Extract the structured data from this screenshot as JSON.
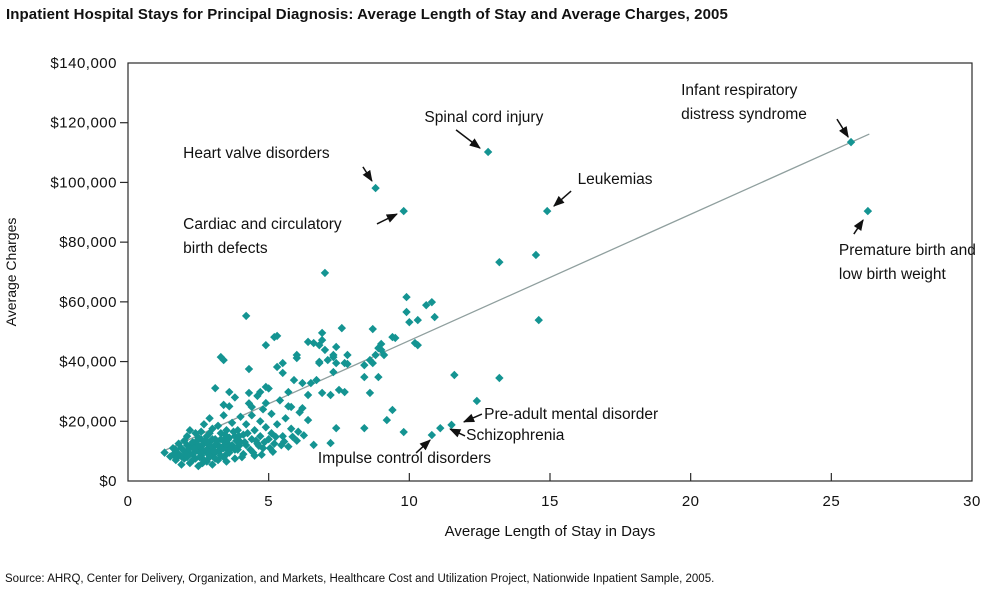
{
  "page": {
    "title": "Inpatient Hospital Stays for Principal Diagnosis: Average Length of Stay and Average Charges, 2005",
    "source": "Source:  AHRQ, Center for Delivery, Organization, and Markets, Healthcare Cost and Utilization Project, Nationwide Inpatient Sample, 2005."
  },
  "chart_data": {
    "type": "scatter",
    "title": "Inpatient Hospital Stays for Principal Diagnosis: Average Length of Stay and Average Charges, 2005",
    "xlabel": "Average Length of Stay in Days",
    "ylabel": "Average Charges",
    "xlim": [
      0,
      30
    ],
    "ylim": [
      0,
      140000
    ],
    "x_ticks": [
      0,
      5,
      10,
      15,
      20,
      25,
      30
    ],
    "y_ticks": [
      0,
      20000,
      40000,
      60000,
      80000,
      100000,
      120000,
      140000
    ],
    "y_tick_labels": [
      "$0",
      "$20,000",
      "$40,000",
      "$60,000",
      "$80,000",
      "$100,000",
      "$120,000",
      "$140,000"
    ],
    "grid": "off",
    "legend": "none",
    "marker": "diamond",
    "marker_color": "#149492",
    "trendline": {
      "x": [
        1.2,
        26.35
      ],
      "y": [
        9800,
        116200
      ],
      "color": "#8f9f9e"
    },
    "annotations": [
      {
        "lines": [
          "Spinal cord injury"
        ],
        "anchor": "middle",
        "label_xy": [
          12.65,
          120200
        ],
        "arrow": {
          "from": [
            11.66,
            117600
          ],
          "to": [
            12.51,
            111500
          ]
        },
        "point": [
          12.8,
          110200
        ]
      },
      {
        "lines": [
          "Infant respiratory",
          "distress syndrome"
        ],
        "anchor": "start",
        "label_xy": [
          19.66,
          129300
        ],
        "arrow": {
          "from": [
            25.2,
            121200
          ],
          "to": [
            25.6,
            115200
          ]
        },
        "point": [
          25.7,
          113500
        ]
      },
      {
        "lines": [
          "Heart valve disorders"
        ],
        "anchor": "start",
        "label_xy": [
          1.96,
          108200
        ],
        "arrow": {
          "from": [
            8.35,
            105200
          ],
          "to": [
            8.67,
            100500
          ]
        },
        "point": [
          8.8,
          98100
        ]
      },
      {
        "lines": [
          "Cardiac and circulatory",
          "birth defects"
        ],
        "anchor": "start",
        "label_xy": [
          1.96,
          84400
        ],
        "arrow": {
          "from": [
            8.85,
            86100
          ],
          "to": [
            9.56,
            89400
          ]
        },
        "point": [
          9.85,
          90400
        ]
      },
      {
        "lines": [
          "Leukemias"
        ],
        "anchor": "start",
        "label_xy": [
          15.98,
          99500
        ],
        "arrow": {
          "from": [
            15.75,
            97100
          ],
          "to": [
            15.14,
            92100
          ]
        },
        "point": [
          14.9,
          90400
        ]
      },
      {
        "lines": [
          "Premature birth and",
          "low birth weight"
        ],
        "anchor": "start",
        "label_xy": [
          25.27,
          75700
        ],
        "arrow": {
          "from": [
            25.8,
            82700
          ],
          "to": [
            26.13,
            87400
          ]
        },
        "point": [
          26.3,
          90400
        ]
      },
      {
        "lines": [
          "Pre-adult mental disorder"
        ],
        "anchor": "start",
        "label_xy": [
          12.66,
          20800
        ],
        "arrow": {
          "from": [
            12.58,
            22400
          ],
          "to": [
            11.94,
            19800
          ]
        },
        "point": [
          11.5,
          18800
        ]
      },
      {
        "lines": [
          "Schizophrenia"
        ],
        "anchor": "start",
        "label_xy": [
          12.02,
          13700
        ],
        "arrow": {
          "from": [
            11.98,
            15100
          ],
          "to": [
            11.45,
            17400
          ]
        },
        "point": [
          11.1,
          17700
        ]
      },
      {
        "lines": [
          "Impulse control disorders"
        ],
        "anchor": "start",
        "label_xy": [
          6.75,
          6000
        ],
        "arrow": {
          "from": [
            10.24,
            9400
          ],
          "to": [
            10.74,
            13700
          ]
        },
        "point": [
          10.8,
          15400
        ]
      }
    ],
    "points": [
      [
        8.8,
        98100
      ],
      [
        9.8,
        90400
      ],
      [
        12.8,
        110200
      ],
      [
        14.9,
        90400
      ],
      [
        25.7,
        113500
      ],
      [
        26.3,
        90400
      ],
      [
        11.5,
        18800
      ],
      [
        11.1,
        17700
      ],
      [
        10.8,
        15400
      ],
      [
        7.0,
        69700
      ],
      [
        13.2,
        73300
      ],
      [
        14.5,
        75700
      ],
      [
        14.6,
        53900
      ],
      [
        4.2,
        55300
      ],
      [
        13.2,
        34500
      ],
      [
        9.9,
        61600
      ],
      [
        10.6,
        58900
      ],
      [
        10.8,
        59900
      ],
      [
        9.9,
        56600
      ],
      [
        10.0,
        53200
      ],
      [
        10.3,
        53900
      ],
      [
        10.9,
        54900
      ],
      [
        9.5,
        47900
      ],
      [
        10.2,
        46200
      ],
      [
        9.4,
        48200
      ],
      [
        10.3,
        45500
      ],
      [
        11.6,
        35500
      ],
      [
        12.4,
        26800
      ],
      [
        5.3,
        48600
      ],
      [
        4.9,
        45500
      ],
      [
        6.4,
        46600
      ],
      [
        5.2,
        48200
      ],
      [
        6.8,
        45500
      ],
      [
        7.0,
        43900
      ],
      [
        7.4,
        44900
      ],
      [
        7.6,
        51200
      ],
      [
        8.7,
        50900
      ],
      [
        6.9,
        49600
      ],
      [
        6.9,
        47200
      ],
      [
        6.6,
        46200
      ],
      [
        8.9,
        44500
      ],
      [
        9.0,
        45900
      ],
      [
        9.0,
        43900
      ],
      [
        9.1,
        42200
      ],
      [
        3.3,
        41500
      ],
      [
        3.4,
        40500
      ],
      [
        4.3,
        37500
      ],
      [
        6.0,
        42200
      ],
      [
        5.3,
        38200
      ],
      [
        5.5,
        36200
      ],
      [
        7.3,
        42200
      ],
      [
        7.1,
        40500
      ],
      [
        7.4,
        39500
      ],
      [
        6.8,
        39500
      ],
      [
        6.0,
        41200
      ],
      [
        8.6,
        40500
      ],
      [
        8.4,
        38800
      ],
      [
        7.8,
        39200
      ],
      [
        8.8,
        42200
      ],
      [
        7.3,
        41500
      ],
      [
        7.7,
        39500
      ],
      [
        7.8,
        42200
      ],
      [
        6.8,
        39900
      ],
      [
        5.5,
        39500
      ],
      [
        7.3,
        36500
      ],
      [
        8.7,
        39500
      ],
      [
        3.1,
        31100
      ],
      [
        5.9,
        33800
      ],
      [
        6.2,
        32800
      ],
      [
        6.7,
        33800
      ],
      [
        6.5,
        32800
      ],
      [
        8.4,
        34800
      ],
      [
        8.9,
        34800
      ],
      [
        7.5,
        30500
      ],
      [
        3.6,
        29800
      ],
      [
        4.3,
        29500
      ],
      [
        4.7,
        29800
      ],
      [
        4.9,
        31500
      ],
      [
        5.7,
        29800
      ],
      [
        6.4,
        28800
      ],
      [
        6.9,
        29500
      ],
      [
        7.2,
        28800
      ],
      [
        7.7,
        29800
      ],
      [
        8.6,
        29500
      ],
      [
        5.0,
        31000
      ],
      [
        3.4,
        25500
      ],
      [
        4.4,
        24800
      ],
      [
        4.9,
        26100
      ],
      [
        5.8,
        24800
      ],
      [
        6.2,
        24400
      ],
      [
        9.4,
        23800
      ],
      [
        4.3,
        26000
      ],
      [
        4.6,
        28500
      ],
      [
        5.4,
        27000
      ],
      [
        4.8,
        24000
      ],
      [
        3.8,
        28000
      ],
      [
        6.4,
        20400
      ],
      [
        9.2,
        20400
      ],
      [
        9.8,
        16400
      ],
      [
        8.4,
        17700
      ],
      [
        7.4,
        17700
      ],
      [
        6.6,
        12100
      ],
      [
        7.2,
        12700
      ],
      [
        3.4,
        22000
      ],
      [
        4.4,
        22000
      ],
      [
        5.1,
        22500
      ],
      [
        6.1,
        23000
      ],
      [
        5.6,
        21000
      ],
      [
        4.7,
        20000
      ],
      [
        3.7,
        19500
      ],
      [
        3.9,
        17000
      ],
      [
        4.5,
        17000
      ],
      [
        3.5,
        17000
      ],
      [
        5.8,
        17500
      ],
      [
        2.9,
        21000
      ],
      [
        3.2,
        18500
      ],
      [
        2.7,
        19000
      ],
      [
        4.2,
        19000
      ],
      [
        5.3,
        19000
      ],
      [
        4.9,
        18000
      ],
      [
        3.6,
        25000
      ],
      [
        5.7,
        25000
      ],
      [
        6.0,
        13500
      ],
      [
        5.5,
        15000
      ],
      [
        4.7,
        15000
      ],
      [
        3.8,
        15000
      ],
      [
        3.4,
        13500
      ],
      [
        3.6,
        14500
      ],
      [
        4.4,
        14000
      ],
      [
        5.0,
        14000
      ],
      [
        5.2,
        12500
      ],
      [
        5.7,
        11500
      ],
      [
        5.1,
        16000
      ],
      [
        4.1,
        15500
      ],
      [
        4.2,
        12000
      ],
      [
        4.6,
        12500
      ],
      [
        4.8,
        11000
      ],
      [
        4.1,
        9000
      ],
      [
        4.5,
        8500
      ],
      [
        3.2,
        12000
      ],
      [
        3.3,
        16000
      ],
      [
        3.1,
        14000
      ],
      [
        3.3,
        10500
      ],
      [
        3.5,
        11000
      ],
      [
        3.9,
        10500
      ],
      [
        4.0,
        13000
      ],
      [
        4.0,
        21500
      ],
      [
        3.0,
        17500
      ],
      [
        2.6,
        16500
      ],
      [
        1.3,
        9500
      ],
      [
        1.5,
        8200
      ],
      [
        1.6,
        11000
      ],
      [
        1.7,
        7000
      ],
      [
        1.8,
        9000
      ],
      [
        1.8,
        12500
      ],
      [
        1.9,
        5500
      ],
      [
        2.0,
        10000
      ],
      [
        2.0,
        13500
      ],
      [
        2.1,
        8000
      ],
      [
        2.1,
        15000
      ],
      [
        2.2,
        6000
      ],
      [
        2.2,
        11500
      ],
      [
        2.2,
        17000
      ],
      [
        2.3,
        9000
      ],
      [
        2.4,
        12000
      ],
      [
        2.4,
        7500
      ],
      [
        2.5,
        14500
      ],
      [
        2.5,
        10000
      ],
      [
        2.5,
        5000
      ],
      [
        2.6,
        8500
      ],
      [
        2.7,
        12500
      ],
      [
        2.8,
        6500
      ],
      [
        2.8,
        10500
      ],
      [
        2.8,
        15000
      ],
      [
        2.9,
        8000
      ],
      [
        2.9,
        13000
      ],
      [
        3.0,
        11000
      ],
      [
        3.0,
        5500
      ],
      [
        3.1,
        9500
      ],
      [
        3.2,
        7000
      ],
      [
        3.4,
        8000
      ],
      [
        3.5,
        6500
      ],
      [
        3.6,
        9500
      ],
      [
        3.8,
        7500
      ],
      [
        2.3,
        13000
      ],
      [
        2.6,
        11000
      ],
      [
        3.0,
        8500
      ],
      [
        2.4,
        16000
      ],
      [
        2.7,
        7000
      ],
      [
        1.9,
        11000
      ],
      [
        2.1,
        12000
      ],
      [
        2.3,
        7000
      ],
      [
        2.6,
        14000
      ],
      [
        3.1,
        12000
      ],
      [
        3.3,
        14000
      ],
      [
        3.7,
        12000
      ],
      [
        3.2,
        10000
      ],
      [
        2.9,
        16000
      ],
      [
        2.8,
        12800
      ],
      [
        2.2,
        9000
      ],
      [
        2.0,
        7500
      ],
      [
        1.7,
        10500
      ],
      [
        3.0,
        14000
      ],
      [
        3.4,
        11000
      ],
      [
        3.6,
        12000
      ],
      [
        3.8,
        10500
      ],
      [
        3.5,
        9000
      ],
      [
        2.5,
        12000
      ],
      [
        2.7,
        10000
      ],
      [
        2.9,
        9500
      ],
      [
        3.1,
        7500
      ],
      [
        3.3,
        8500
      ],
      [
        2.4,
        10000
      ],
      [
        2.6,
        9300
      ],
      [
        1.6,
        8800
      ],
      [
        1.9,
        8200
      ],
      [
        2.15,
        10500
      ],
      [
        2.35,
        11000
      ],
      [
        2.55,
        8000
      ],
      [
        2.75,
        13700
      ],
      [
        2.95,
        11700
      ],
      [
        3.15,
        13200
      ],
      [
        3.45,
        12300
      ],
      [
        3.65,
        10800
      ],
      [
        3.85,
        13500
      ],
      [
        3.95,
        11800
      ],
      [
        2.45,
        13500
      ],
      [
        2.85,
        9000
      ],
      [
        3.05,
        10000
      ],
      [
        3.25,
        11500
      ],
      [
        3.55,
        13800
      ],
      [
        2.05,
        9000
      ],
      [
        1.75,
        8000
      ],
      [
        2.65,
        6000
      ],
      [
        3.45,
        15500
      ],
      [
        3.75,
        16500
      ],
      [
        3.95,
        15000
      ],
      [
        4.15,
        13000
      ],
      [
        4.35,
        10500
      ],
      [
        4.25,
        16000
      ],
      [
        4.55,
        13500
      ],
      [
        4.65,
        11800
      ],
      [
        4.85,
        13000
      ],
      [
        5.05,
        11000
      ],
      [
        5.25,
        14800
      ],
      [
        5.45,
        12000
      ],
      [
        4.05,
        8000
      ],
      [
        4.45,
        9500
      ],
      [
        4.75,
        8800
      ],
      [
        5.15,
        9800
      ],
      [
        5.55,
        13200
      ],
      [
        5.85,
        14800
      ],
      [
        6.05,
        16500
      ],
      [
        6.25,
        15300
      ]
    ]
  }
}
